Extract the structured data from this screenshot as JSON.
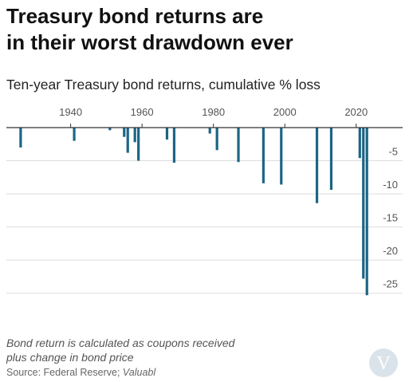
{
  "header": {
    "title_line1": "Treasury bond returns are",
    "title_line2": "in their worst drawdown ever",
    "subtitle": "Ten-year Treasury bond returns, cumulative % loss"
  },
  "footer": {
    "note_line1": "Bond return is calculated as coupons received",
    "note_line2": "plus change in bond price",
    "source_prefix": "Source: Federal Reserve; ",
    "source_publisher": "Valuabl",
    "logo_letter": "V"
  },
  "colors": {
    "bar": "#1c6585",
    "grid": "#dddddd",
    "baseline": "#333333",
    "tick_text": "#555555",
    "logo_bg": "#dbe3ea"
  },
  "chart_data": {
    "type": "bar",
    "title": "Treasury bond returns are in their worst drawdown ever",
    "subtitle": "Ten-year Treasury bond returns, cumulative % loss",
    "xlabel": "",
    "ylabel": "",
    "xlim": [
      1922,
      2033
    ],
    "ylim": [
      -26,
      0
    ],
    "x_ticks": [
      1940,
      1960,
      1980,
      2000,
      2020
    ],
    "y_ticks": [
      -5,
      -10,
      -15,
      -20,
      -25
    ],
    "grid": true,
    "x": [
      1926,
      1941,
      1951,
      1955,
      1956,
      1958,
      1959,
      1967,
      1969,
      1979,
      1981,
      1987,
      1994,
      1999,
      2009,
      2013,
      2021,
      2022,
      2023
    ],
    "values": [
      -3.0,
      -2.0,
      -0.4,
      -1.4,
      -3.8,
      -2.2,
      -5.0,
      -1.8,
      -5.3,
      -0.9,
      -3.4,
      -5.2,
      -8.4,
      -8.6,
      -11.4,
      -9.4,
      -4.6,
      -22.8,
      -25.3
    ]
  }
}
